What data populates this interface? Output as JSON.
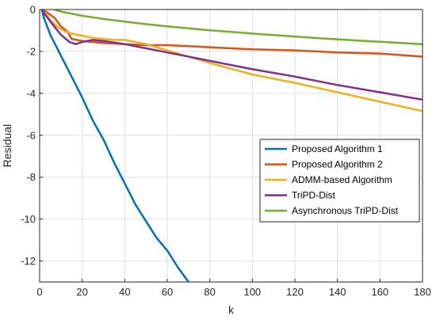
{
  "chart_data": {
    "type": "line",
    "title": "",
    "xlabel": "k",
    "ylabel": "Residual",
    "xlim": [
      0,
      180
    ],
    "ylim": [
      -13,
      0
    ],
    "xticks": [
      0,
      20,
      40,
      60,
      80,
      100,
      120,
      140,
      160,
      180
    ],
    "yticks": [
      0,
      -2,
      -4,
      -6,
      -8,
      -10,
      -12
    ],
    "grid": true,
    "legend_position": "right",
    "series": [
      {
        "name": "Proposed Algorithm 1",
        "color": "#0072BD",
        "x": [
          1,
          2,
          5,
          10,
          15,
          20,
          25,
          30,
          35,
          40,
          45,
          50,
          55,
          60,
          65,
          70
        ],
        "y": [
          0,
          -0.4,
          -1.2,
          -2.2,
          -3.2,
          -4.2,
          -5.3,
          -6.2,
          -7.3,
          -8.3,
          -9.3,
          -10.1,
          -10.9,
          -11.5,
          -12.3,
          -13.0
        ]
      },
      {
        "name": "Proposed Algorithm 2",
        "color": "#D95319",
        "x": [
          1,
          3,
          5,
          7,
          10,
          13,
          15,
          20,
          25,
          30,
          40,
          50,
          60,
          70,
          80,
          90,
          100,
          120,
          140,
          160,
          180
        ],
        "y": [
          0,
          -0.1,
          -0.25,
          -0.4,
          -0.8,
          -1.05,
          -1.4,
          -1.5,
          -1.55,
          -1.6,
          -1.65,
          -1.7,
          -1.7,
          -1.75,
          -1.8,
          -1.85,
          -1.9,
          -1.95,
          -2.05,
          -2.1,
          -2.25
        ]
      },
      {
        "name": "ADMM-based Algorithm",
        "color": "#EDB120",
        "x": [
          1,
          3,
          5,
          8,
          12,
          15,
          20,
          25,
          30,
          35,
          40,
          50,
          60,
          80,
          100,
          120,
          140,
          160,
          180
        ],
        "y": [
          0,
          -0.2,
          -0.5,
          -0.8,
          -1.05,
          -1.15,
          -1.25,
          -1.35,
          -1.4,
          -1.45,
          -1.45,
          -1.65,
          -1.95,
          -2.55,
          -3.1,
          -3.5,
          -3.95,
          -4.4,
          -4.85
        ]
      },
      {
        "name": "TriPD-Dist",
        "color": "#7E2F8E",
        "x": [
          1,
          3,
          6,
          10,
          14,
          17,
          20,
          25,
          30,
          40,
          50,
          60,
          80,
          100,
          120,
          140,
          160,
          180
        ],
        "y": [
          0,
          -0.3,
          -0.7,
          -1.2,
          -1.55,
          -1.65,
          -1.55,
          -1.45,
          -1.5,
          -1.65,
          -1.85,
          -2.05,
          -2.45,
          -2.85,
          -3.2,
          -3.6,
          -3.95,
          -4.3
        ]
      },
      {
        "name": "Asynchronous TriPD-Dist",
        "color": "#77AC30",
        "x": [
          7,
          10,
          20,
          30,
          40,
          50,
          60,
          70,
          80,
          90,
          100,
          110,
          120,
          130,
          140,
          150,
          160,
          170,
          180
        ],
        "y": [
          0,
          -0.1,
          -0.3,
          -0.45,
          -0.58,
          -0.7,
          -0.8,
          -0.9,
          -0.99,
          -1.07,
          -1.15,
          -1.22,
          -1.29,
          -1.36,
          -1.42,
          -1.48,
          -1.54,
          -1.6,
          -1.66
        ]
      }
    ]
  }
}
